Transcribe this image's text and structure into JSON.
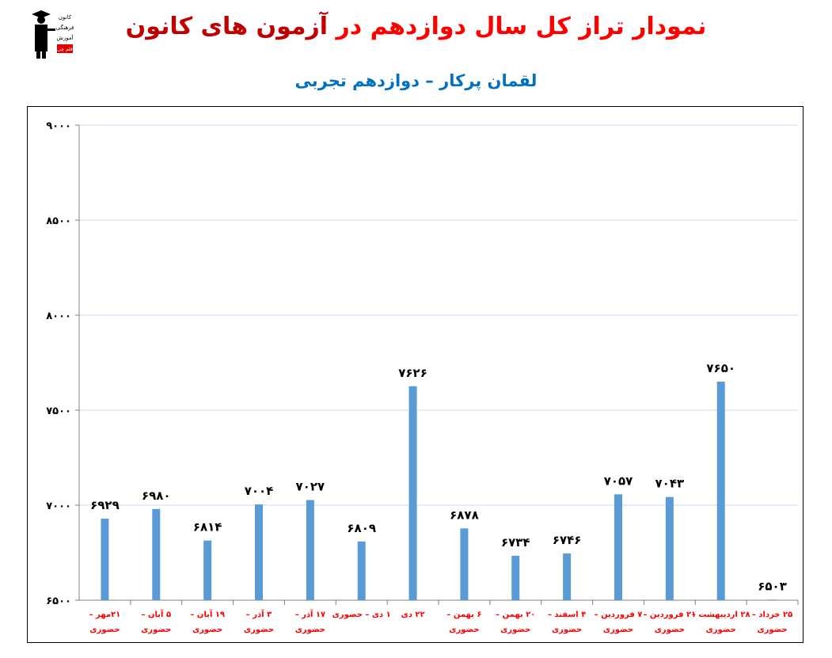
{
  "title": {
    "part1": "نمودار تراز کل سال دوازدهم در ",
    "part2": "آزمون های کانون",
    "color1": "#ff0000",
    "color2": "#c00000"
  },
  "subtitle": {
    "part1": "لقمان پرکار",
    "part2": " – دوازدهم تجربی",
    "color": "#0070c0"
  },
  "logo": {
    "lines": [
      "کانون",
      "فرهنگی",
      "آموزش",
      "قلم چی"
    ]
  },
  "colors": {
    "bar": "#5b9bd5",
    "grid": "#c6d9f1",
    "xlabel": "#ff0000",
    "text": "#000000"
  },
  "chart_data": {
    "type": "bar",
    "grid": true,
    "ylim": [
      6500,
      9000
    ],
    "yticks": [
      6500,
      7000,
      7500,
      8000,
      8500,
      9000
    ],
    "ytick_labels": [
      "۶۵۰۰",
      "۷۰۰۰",
      "۷۵۰۰",
      "۸۰۰۰",
      "۸۵۰۰",
      "۹۰۰۰"
    ],
    "categories": [
      [
        "۲۱مهر –",
        "حضوری"
      ],
      [
        "۵ آبان –",
        "حضوری"
      ],
      [
        "۱۹ آبان –",
        "حضوری"
      ],
      [
        "۳ آذر –",
        "حضوری"
      ],
      [
        "۱۷ آذر –",
        "حضوری"
      ],
      [
        "۱ دی – حضوری"
      ],
      [
        "۲۲ دی"
      ],
      [
        "۶ بهمن –",
        "حضوری"
      ],
      [
        "۲۰ بهمن –",
        "حضوری"
      ],
      [
        "۴ اسفند –",
        "حضوری"
      ],
      [
        "۷ فروردین –",
        "حضوری"
      ],
      [
        "۲۱ فروردین –",
        "حضوری"
      ],
      [
        "۲۸ اردیبهشت –",
        "حضوری"
      ],
      [
        "۲۵ خرداد –",
        "حضوری"
      ]
    ],
    "values": [
      6929,
      6980,
      6814,
      7004,
      7027,
      6809,
      7626,
      6878,
      6734,
      6746,
      7057,
      7043,
      7650,
      6503
    ],
    "value_labels": [
      "۶۹۲۹",
      "۶۹۸۰",
      "۶۸۱۴",
      "۷۰۰۴",
      "۷۰۲۷",
      "۶۸۰۹",
      "۷۶۲۶",
      "۶۸۷۸",
      "۶۷۳۴",
      "۶۷۴۶",
      "۷۰۵۷",
      "۷۰۴۳",
      "۷۶۵۰",
      "۶۵۰۳"
    ]
  }
}
